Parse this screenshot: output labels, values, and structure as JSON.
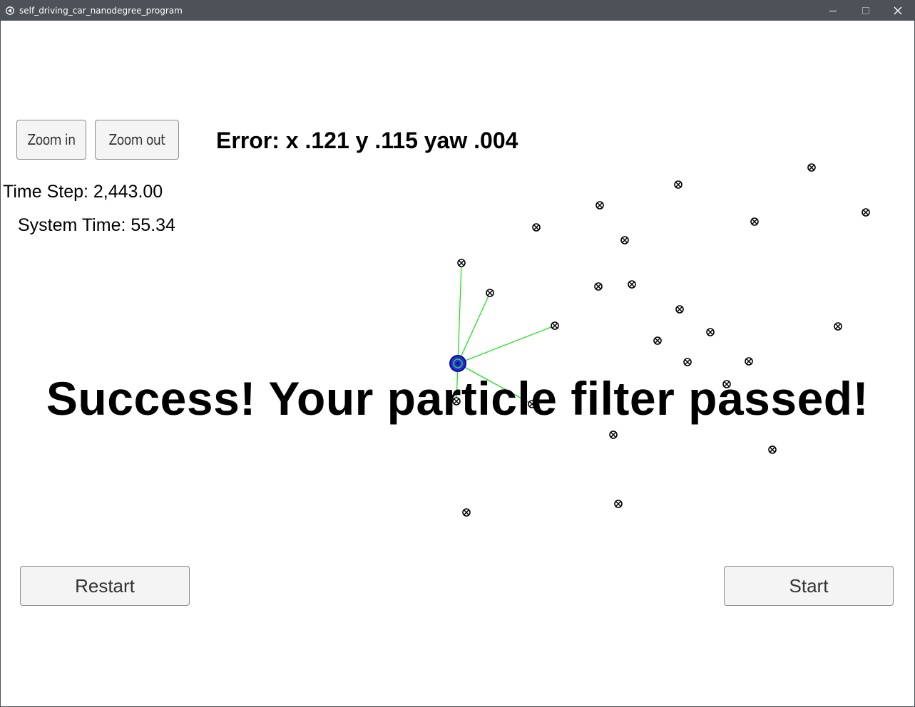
{
  "window": {
    "title": "self_driving_car_nanodegree_program"
  },
  "controls": {
    "zoom_in_label": "Zoom in",
    "zoom_out_label": "Zoom out",
    "restart_label": "Restart",
    "start_label": "Start"
  },
  "status": {
    "error_text": "Error: x .121 y .115 yaw .004",
    "time_step_text": "Time Step: 2,443.00",
    "system_time_text": "System Time: 55.34"
  },
  "message": {
    "success_text": "Success! Your particle filter passed!"
  },
  "colors": {
    "titlebar": "#4c5257",
    "observation_line": "#22e022",
    "vehicle": "#1a1ae6",
    "landmark": "#000000"
  },
  "icons": {
    "app": "unity-icon",
    "minimize": "minimize-icon",
    "maximize": "maximize-icon",
    "close": "close-icon"
  }
}
